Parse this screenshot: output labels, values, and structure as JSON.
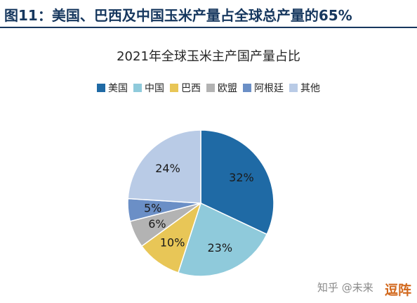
{
  "figure": {
    "title": "图11：美国、巴西及中国玉米产量占全球总产量的65%"
  },
  "chart_data": {
    "type": "pie",
    "title": "2021年全球玉米主产国产量占比",
    "legend_position": "top",
    "slices": [
      {
        "name": "美国",
        "value": 32,
        "label": "32%",
        "color": "#1f6aa5"
      },
      {
        "name": "中国",
        "value": 23,
        "label": "23%",
        "color": "#8fcadb"
      },
      {
        "name": "巴西",
        "value": 10,
        "label": "10%",
        "color": "#e8c657"
      },
      {
        "name": "欧盟",
        "value": 6,
        "label": "6%",
        "color": "#b3b3b3"
      },
      {
        "name": "阿根廷",
        "value": 5,
        "label": "5%",
        "color": "#6b8fc6"
      },
      {
        "name": "其他",
        "value": 24,
        "label": "24%",
        "color": "#b9cbe6"
      }
    ]
  },
  "watermark": {
    "text": "知乎 @未来",
    "logo_text": "逗阵"
  }
}
